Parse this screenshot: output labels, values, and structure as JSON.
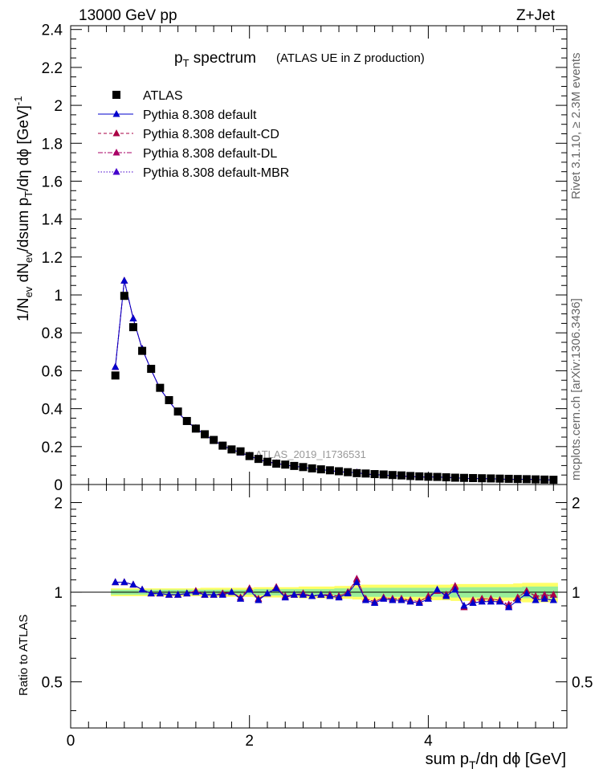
{
  "header": {
    "left": "13000 GeV pp",
    "right": "Z+Jet"
  },
  "side_labels": {
    "upper": "Rivet 3.1.10, ≥ 2.3M events",
    "lower": "mcplots.cern.ch [arXiv:1306.3436]"
  },
  "watermark": "ATLAS_2019_I1736531",
  "colors": {
    "data": "#000000",
    "default": "#0000cc",
    "cd": "#aa0044",
    "dl": "#aa0066",
    "mbr": "#4400cc",
    "band_green": "#99ee99",
    "band_yellow": "#ffff66"
  },
  "chart_data": [
    {
      "type": "scatter",
      "title_main": "p",
      "title_sub": "T",
      "title_rest": " spectrum",
      "title_note": "(ATLAS UE in Z production)",
      "ylabel": "1/N_ev dN_ev/dsum p_T/dη dϕ [GeV]^-1",
      "xlim": [
        0,
        5.55
      ],
      "ylim": [
        0,
        2.42
      ],
      "y_ticks": [
        "0",
        "0.2",
        "0.4",
        "0.6",
        "0.8",
        "1",
        "1.2",
        "1.4",
        "1.6",
        "1.8",
        "2",
        "2.2",
        "2.4"
      ],
      "x": [
        0.5,
        0.6,
        0.7,
        0.8,
        0.9,
        1.0,
        1.1,
        1.2,
        1.3,
        1.4,
        1.5,
        1.6,
        1.7,
        1.8,
        1.9,
        2.0,
        2.1,
        2.2,
        2.3,
        2.4,
        2.5,
        2.6,
        2.7,
        2.8,
        2.9,
        3.0,
        3.1,
        3.2,
        3.3,
        3.4,
        3.5,
        3.6,
        3.7,
        3.8,
        3.9,
        4.0,
        4.1,
        4.2,
        4.3,
        4.4,
        4.5,
        4.6,
        4.7,
        4.8,
        4.9,
        5.0,
        5.1,
        5.2,
        5.3,
        5.4
      ],
      "series": [
        {
          "name": "ATLAS",
          "values": [
            0.575,
            0.995,
            0.83,
            0.705,
            0.61,
            0.51,
            0.445,
            0.385,
            0.335,
            0.295,
            0.265,
            0.235,
            0.205,
            0.185,
            0.175,
            0.15,
            0.135,
            0.12,
            0.11,
            0.105,
            0.098,
            0.092,
            0.085,
            0.08,
            0.075,
            0.07,
            0.065,
            0.06,
            0.058,
            0.055,
            0.053,
            0.05,
            0.048,
            0.045,
            0.043,
            0.041,
            0.04,
            0.038,
            0.036,
            0.035,
            0.034,
            0.033,
            0.032,
            0.031,
            0.03,
            0.029,
            0.028,
            0.027,
            0.026,
            0.025
          ]
        },
        {
          "name": "Pythia 8.308 default",
          "values": [
            0.62,
            1.075,
            0.875,
            0.715,
            0.605,
            0.505,
            0.44,
            0.38,
            0.332,
            0.297,
            0.262,
            0.233,
            0.205,
            0.185,
            0.168,
            0.152,
            0.132,
            0.119,
            0.112,
            0.103,
            0.096,
            0.091,
            0.083,
            0.079,
            0.073,
            0.068,
            0.064,
            0.063,
            0.055,
            0.052,
            0.05,
            0.047,
            0.045,
            0.042,
            0.04,
            0.039,
            0.04,
            0.037,
            0.036,
            0.032,
            0.031,
            0.031,
            0.03,
            0.029,
            0.027,
            0.027,
            0.028,
            0.026,
            0.025,
            0.024
          ]
        },
        {
          "name": "Pythia 8.308 default-CD",
          "values": [
            0.62,
            1.075,
            0.875,
            0.715,
            0.605,
            0.505,
            0.44,
            0.38,
            0.332,
            0.297,
            0.262,
            0.233,
            0.205,
            0.185,
            0.168,
            0.152,
            0.132,
            0.119,
            0.112,
            0.103,
            0.096,
            0.091,
            0.083,
            0.079,
            0.073,
            0.068,
            0.064,
            0.063,
            0.055,
            0.052,
            0.05,
            0.047,
            0.045,
            0.042,
            0.04,
            0.039,
            0.04,
            0.037,
            0.036,
            0.032,
            0.031,
            0.031,
            0.03,
            0.029,
            0.027,
            0.027,
            0.028,
            0.026,
            0.025,
            0.024
          ]
        },
        {
          "name": "Pythia 8.308 default-DL",
          "values": [
            0.62,
            1.075,
            0.875,
            0.715,
            0.605,
            0.505,
            0.44,
            0.38,
            0.332,
            0.297,
            0.262,
            0.233,
            0.205,
            0.185,
            0.168,
            0.152,
            0.132,
            0.119,
            0.112,
            0.103,
            0.096,
            0.091,
            0.083,
            0.079,
            0.073,
            0.068,
            0.064,
            0.063,
            0.055,
            0.052,
            0.05,
            0.047,
            0.045,
            0.042,
            0.04,
            0.039,
            0.04,
            0.037,
            0.036,
            0.032,
            0.031,
            0.031,
            0.03,
            0.029,
            0.027,
            0.027,
            0.028,
            0.026,
            0.025,
            0.024
          ]
        },
        {
          "name": "Pythia 8.308 default-MBR",
          "values": [
            0.62,
            1.075,
            0.875,
            0.715,
            0.605,
            0.505,
            0.44,
            0.38,
            0.332,
            0.297,
            0.262,
            0.233,
            0.205,
            0.185,
            0.168,
            0.152,
            0.132,
            0.119,
            0.112,
            0.103,
            0.096,
            0.091,
            0.083,
            0.079,
            0.073,
            0.068,
            0.064,
            0.063,
            0.055,
            0.052,
            0.05,
            0.047,
            0.045,
            0.042,
            0.04,
            0.039,
            0.04,
            0.037,
            0.036,
            0.032,
            0.031,
            0.031,
            0.03,
            0.029,
            0.027,
            0.027,
            0.028,
            0.026,
            0.025,
            0.024
          ]
        }
      ]
    },
    {
      "type": "line",
      "ylabel": "Ratio to ATLAS",
      "xlabel": "sum p_T/dη dϕ [GeV]",
      "xlim": [
        0,
        5.55
      ],
      "ylim": [
        0.35,
        2.3
      ],
      "y_ticks": [
        0.5,
        1,
        2
      ],
      "y_tick_labels": [
        "0.5",
        "1",
        "2"
      ],
      "x_ticks": [
        0,
        2,
        4
      ],
      "x_tick_labels": [
        "0",
        "2",
        "4"
      ],
      "band_green_halfwidth": [
        0.02,
        0.02,
        0.02,
        0.02,
        0.02,
        0.02,
        0.02,
        0.02,
        0.02,
        0.02,
        0.02,
        0.02,
        0.02,
        0.02,
        0.02,
        0.02,
        0.025,
        0.025,
        0.025,
        0.025,
        0.025,
        0.025,
        0.025,
        0.025,
        0.025,
        0.03,
        0.03,
        0.035,
        0.035,
        0.035,
        0.035,
        0.035,
        0.035,
        0.035,
        0.035,
        0.035,
        0.035,
        0.035,
        0.04,
        0.04,
        0.04,
        0.04,
        0.04,
        0.04,
        0.04,
        0.04,
        0.045,
        0.045,
        0.045,
        0.045
      ],
      "band_yellow_halfwidth": [
        0.03,
        0.03,
        0.03,
        0.03,
        0.03,
        0.03,
        0.03,
        0.03,
        0.03,
        0.03,
        0.035,
        0.035,
        0.035,
        0.035,
        0.035,
        0.035,
        0.04,
        0.04,
        0.04,
        0.04,
        0.04,
        0.045,
        0.045,
        0.045,
        0.045,
        0.05,
        0.05,
        0.055,
        0.06,
        0.06,
        0.06,
        0.06,
        0.06,
        0.06,
        0.06,
        0.06,
        0.06,
        0.06,
        0.065,
        0.065,
        0.065,
        0.065,
        0.065,
        0.065,
        0.065,
        0.07,
        0.075,
        0.075,
        0.075,
        0.075
      ],
      "series": [
        {
          "name": "Pythia 8.308 default",
          "values": [
            1.08,
            1.08,
            1.06,
            1.02,
            0.99,
            0.99,
            0.98,
            0.98,
            0.99,
            1.0,
            0.98,
            0.98,
            0.98,
            1.0,
            0.95,
            1.02,
            0.94,
            0.99,
            1.03,
            0.96,
            0.98,
            0.98,
            0.97,
            0.98,
            0.97,
            0.96,
            0.99,
            1.08,
            0.94,
            0.92,
            0.95,
            0.94,
            0.94,
            0.93,
            0.92,
            0.95,
            1.02,
            0.97,
            1.02,
            0.9,
            0.92,
            0.93,
            0.93,
            0.93,
            0.89,
            0.94,
            0.99,
            0.94,
            0.95,
            0.94
          ]
        },
        {
          "name": "Pythia 8.308 default-CD",
          "values": [
            1.08,
            1.08,
            1.06,
            1.02,
            0.99,
            0.99,
            0.98,
            0.98,
            0.99,
            1.01,
            0.98,
            0.98,
            0.99,
            1.0,
            0.96,
            1.03,
            0.95,
            0.99,
            1.04,
            0.97,
            0.98,
            0.99,
            0.97,
            0.98,
            0.98,
            0.97,
            1.0,
            1.1,
            0.95,
            0.93,
            0.96,
            0.95,
            0.95,
            0.94,
            0.93,
            0.97,
            1.01,
            0.98,
            1.04,
            0.89,
            0.94,
            0.95,
            0.95,
            0.94,
            0.9,
            0.96,
            1.01,
            0.97,
            0.97,
            0.98
          ]
        },
        {
          "name": "Pythia 8.308 default-DL",
          "values": [
            1.08,
            1.08,
            1.06,
            1.02,
            0.99,
            0.99,
            0.98,
            0.98,
            0.99,
            1.01,
            0.98,
            0.98,
            0.99,
            1.0,
            0.96,
            1.03,
            0.95,
            0.99,
            1.04,
            0.97,
            0.98,
            0.99,
            0.97,
            0.98,
            0.98,
            0.97,
            1.0,
            1.11,
            0.95,
            0.93,
            0.96,
            0.95,
            0.95,
            0.94,
            0.93,
            0.97,
            1.01,
            0.98,
            1.05,
            0.89,
            0.94,
            0.95,
            0.95,
            0.94,
            0.91,
            0.96,
            1.01,
            0.97,
            0.98,
            0.98
          ]
        },
        {
          "name": "Pythia 8.308 default-MBR",
          "values": [
            1.08,
            1.08,
            1.06,
            1.02,
            0.99,
            0.99,
            0.98,
            0.98,
            0.99,
            1.0,
            0.98,
            0.98,
            0.98,
            1.0,
            0.95,
            1.02,
            0.94,
            0.99,
            1.03,
            0.96,
            0.98,
            0.98,
            0.97,
            0.98,
            0.97,
            0.96,
            0.99,
            1.08,
            0.94,
            0.92,
            0.95,
            0.94,
            0.94,
            0.93,
            0.92,
            0.95,
            1.02,
            0.97,
            1.02,
            0.9,
            0.92,
            0.93,
            0.93,
            0.93,
            0.89,
            0.94,
            0.99,
            0.94,
            0.95,
            0.94
          ]
        }
      ]
    }
  ]
}
